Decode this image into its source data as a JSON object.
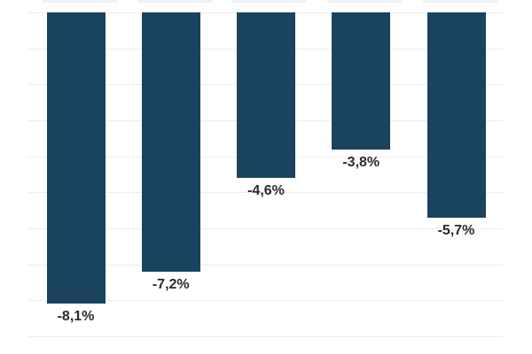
{
  "chart_data": {
    "type": "bar",
    "title": "",
    "xlabel": "",
    "ylabel": "",
    "values": [
      -8.1,
      -7.2,
      -4.6,
      -3.8,
      -5.7
    ],
    "value_labels": [
      "-8,1%",
      "-7,2%",
      "-4,6%",
      "-3,8%",
      "-5,7%"
    ],
    "ylim": [
      -9.6,
      0
    ],
    "grid": {
      "visible": true,
      "step_percent": 1,
      "line_count": 10
    },
    "legend_position": "none",
    "colors": {
      "bar": "#1a4360",
      "gridline": "#ececec",
      "label_text": "#2b2b2b",
      "background": "#ffffff"
    }
  }
}
